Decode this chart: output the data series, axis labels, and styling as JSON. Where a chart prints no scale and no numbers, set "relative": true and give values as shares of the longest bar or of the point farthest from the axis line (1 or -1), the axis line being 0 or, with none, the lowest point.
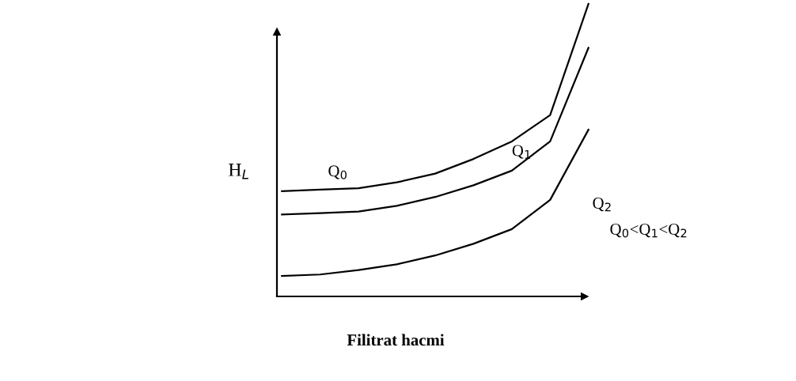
{
  "chart_data": {
    "type": "line",
    "relative": true,
    "xlabel": "Filitrat hacmi",
    "ylabel": "H$_{L}$",
    "categories": [
      null,
      null,
      null,
      null,
      null,
      null,
      null,
      null,
      null
    ],
    "series": [
      {
        "name": "Q$_{0}$",
        "color": "#000000",
        "values": [
          0.36,
          0.365,
          0.37,
          0.39,
          0.42,
          0.47,
          0.53,
          0.62,
          1.0
        ]
      },
      {
        "name": "Q$_{1}$",
        "color": "#000000",
        "values": [
          0.28,
          0.285,
          0.29,
          0.31,
          0.34,
          0.38,
          0.43,
          0.53,
          0.85
        ]
      },
      {
        "name": "Q$_{2}$",
        "color": "#000000",
        "values": [
          0.07,
          0.075,
          0.09,
          0.11,
          0.14,
          0.18,
          0.23,
          0.33,
          0.57
        ]
      }
    ],
    "annotations": [
      "Q$_{0}$<Q$_{1}$<Q$_{2}$"
    ],
    "legend": false,
    "marker": "none",
    "line_style": "solid"
  }
}
